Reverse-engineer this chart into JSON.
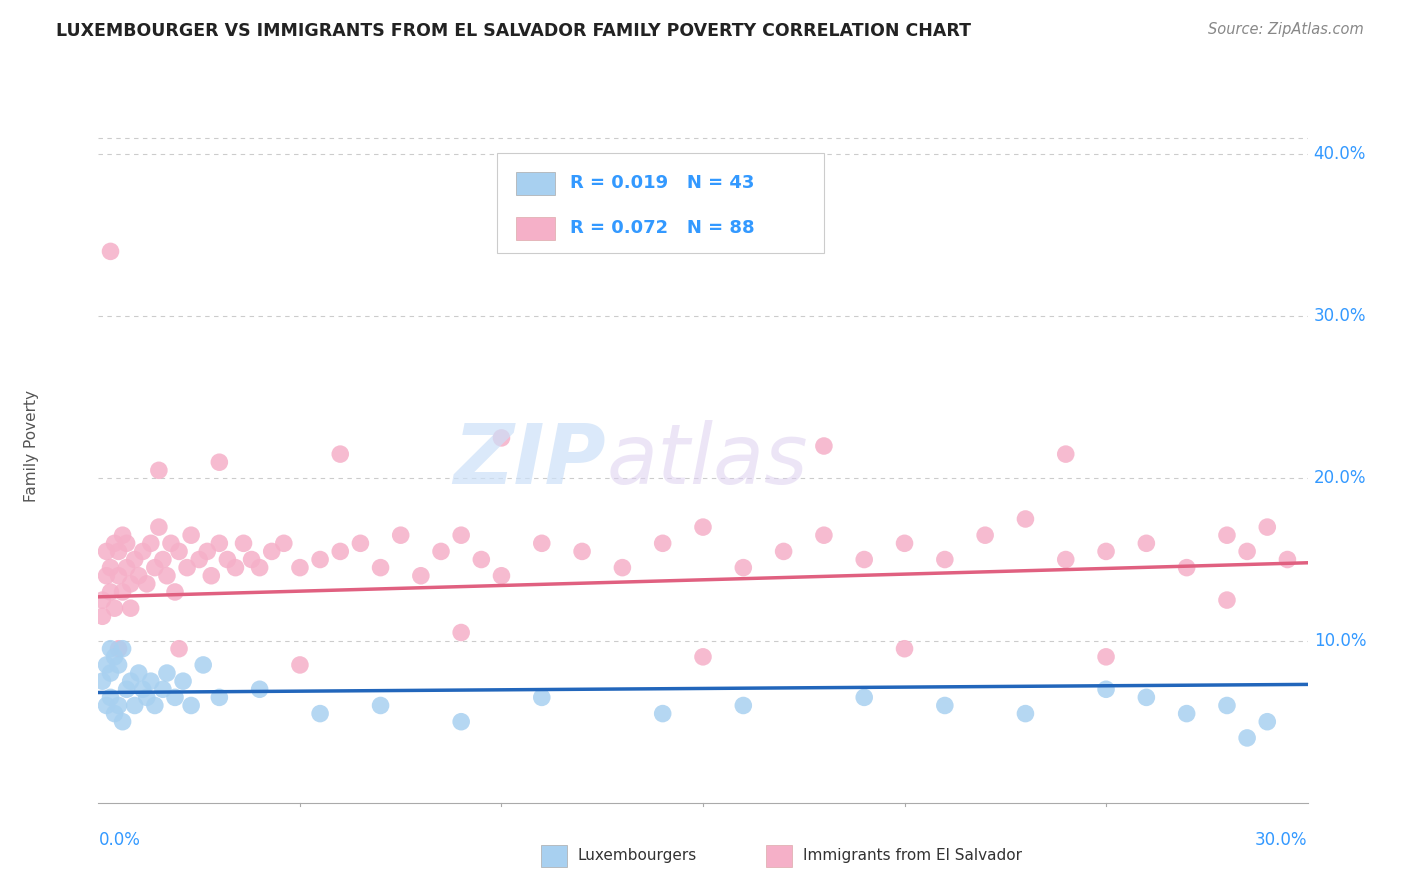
{
  "title": "LUXEMBOURGER VS IMMIGRANTS FROM EL SALVADOR FAMILY POVERTY CORRELATION CHART",
  "source": "Source: ZipAtlas.com",
  "ylabel": "Family Poverty",
  "xlim": [
    0.0,
    0.3
  ],
  "ylim": [
    -0.02,
    0.44
  ],
  "plot_ylim": [
    0.0,
    0.44
  ],
  "y_ticks": [
    0.1,
    0.2,
    0.3,
    0.4
  ],
  "y_tick_labels": [
    "10.0%",
    "20.0%",
    "30.0%",
    "40.0%"
  ],
  "lux_color": "#a8d0f0",
  "sal_color": "#f5b0c8",
  "lux_line_color": "#2266bb",
  "sal_line_color": "#e06080",
  "background_color": "#ffffff",
  "grid_color": "#cccccc",
  "title_color": "#222222",
  "axis_label_color": "#3399ff",
  "tick_color": "#3399ff",
  "legend_text_color": "#3399ff",
  "watermark_zip_color": "#cce0f8",
  "watermark_atlas_color": "#ddd0f0",
  "lux_R": "0.019",
  "lux_N": "43",
  "sal_R": "0.072",
  "sal_N": "88",
  "lux_label": "Luxembourgers",
  "sal_label": "Immigrants from El Salvador",
  "lux_scatter_x": [
    0.001,
    0.002,
    0.002,
    0.003,
    0.003,
    0.003,
    0.004,
    0.004,
    0.005,
    0.005,
    0.006,
    0.006,
    0.007,
    0.008,
    0.009,
    0.01,
    0.011,
    0.012,
    0.013,
    0.014,
    0.016,
    0.017,
    0.019,
    0.021,
    0.023,
    0.026,
    0.03,
    0.04,
    0.055,
    0.07,
    0.09,
    0.11,
    0.14,
    0.16,
    0.19,
    0.21,
    0.23,
    0.25,
    0.26,
    0.27,
    0.28,
    0.285,
    0.29
  ],
  "lux_scatter_y": [
    0.075,
    0.06,
    0.085,
    0.065,
    0.08,
    0.095,
    0.055,
    0.09,
    0.06,
    0.085,
    0.05,
    0.095,
    0.07,
    0.075,
    0.06,
    0.08,
    0.07,
    0.065,
    0.075,
    0.06,
    0.07,
    0.08,
    0.065,
    0.075,
    0.06,
    0.085,
    0.065,
    0.07,
    0.055,
    0.06,
    0.05,
    0.065,
    0.055,
    0.06,
    0.065,
    0.06,
    0.055,
    0.07,
    0.065,
    0.055,
    0.06,
    0.04,
    0.05
  ],
  "sal_scatter_x": [
    0.001,
    0.001,
    0.002,
    0.002,
    0.003,
    0.003,
    0.004,
    0.004,
    0.005,
    0.005,
    0.006,
    0.006,
    0.007,
    0.007,
    0.008,
    0.009,
    0.01,
    0.011,
    0.012,
    0.013,
    0.014,
    0.015,
    0.016,
    0.017,
    0.018,
    0.019,
    0.02,
    0.022,
    0.023,
    0.025,
    0.027,
    0.028,
    0.03,
    0.032,
    0.034,
    0.036,
    0.038,
    0.04,
    0.043,
    0.046,
    0.05,
    0.055,
    0.06,
    0.065,
    0.07,
    0.075,
    0.08,
    0.085,
    0.09,
    0.095,
    0.1,
    0.11,
    0.12,
    0.13,
    0.14,
    0.15,
    0.16,
    0.17,
    0.18,
    0.19,
    0.2,
    0.21,
    0.22,
    0.23,
    0.24,
    0.25,
    0.26,
    0.27,
    0.28,
    0.285,
    0.29,
    0.295,
    0.005,
    0.008,
    0.02,
    0.05,
    0.09,
    0.15,
    0.2,
    0.25,
    0.28,
    0.003,
    0.015,
    0.03,
    0.06,
    0.1,
    0.18,
    0.24
  ],
  "sal_scatter_y": [
    0.125,
    0.115,
    0.14,
    0.155,
    0.13,
    0.145,
    0.16,
    0.12,
    0.14,
    0.155,
    0.13,
    0.165,
    0.145,
    0.16,
    0.135,
    0.15,
    0.14,
    0.155,
    0.135,
    0.16,
    0.145,
    0.17,
    0.15,
    0.14,
    0.16,
    0.13,
    0.155,
    0.145,
    0.165,
    0.15,
    0.155,
    0.14,
    0.16,
    0.15,
    0.145,
    0.16,
    0.15,
    0.145,
    0.155,
    0.16,
    0.145,
    0.15,
    0.155,
    0.16,
    0.145,
    0.165,
    0.14,
    0.155,
    0.165,
    0.15,
    0.14,
    0.16,
    0.155,
    0.145,
    0.16,
    0.17,
    0.145,
    0.155,
    0.165,
    0.15,
    0.16,
    0.15,
    0.165,
    0.175,
    0.15,
    0.155,
    0.16,
    0.145,
    0.165,
    0.155,
    0.17,
    0.15,
    0.095,
    0.12,
    0.095,
    0.085,
    0.105,
    0.09,
    0.095,
    0.09,
    0.125,
    0.34,
    0.205,
    0.21,
    0.215,
    0.225,
    0.22,
    0.215
  ]
}
